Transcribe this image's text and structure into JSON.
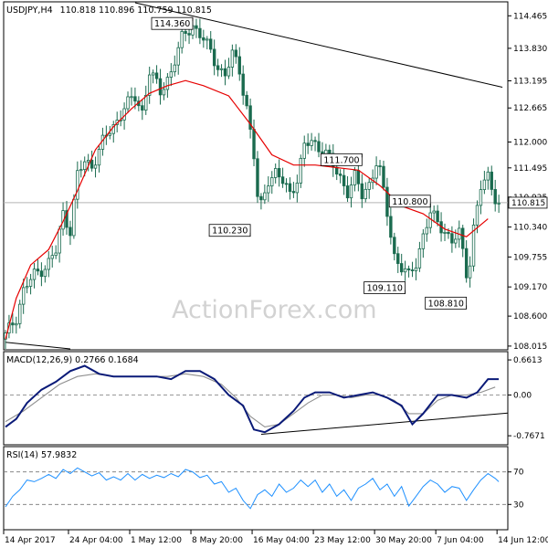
{
  "chart_data": {
    "type": "candlestick",
    "header": {
      "symbol": "USDJPY,H4",
      "ohlc": "110.818 110.896 110.759 110.815"
    },
    "watermark": "ActionForex.com",
    "price_panel": {
      "y_range": [
        107.96,
        114.72
      ],
      "y_ticks": [
        "114.465",
        "113.830",
        "113.195",
        "112.665",
        "112.000",
        "111.495",
        "110.925",
        "110.340",
        "109.755",
        "109.170",
        "108.600",
        "108.015"
      ],
      "y_tick_values": [
        114.465,
        113.83,
        113.195,
        112.665,
        112.0,
        111.495,
        110.925,
        110.34,
        109.755,
        109.17,
        108.6,
        108.015
      ],
      "last_price_label": "110.815",
      "last_price": 110.815,
      "annotations": [
        {
          "label": "114.360",
          "x": 52,
          "price": 114.36
        },
        {
          "label": "110.230",
          "x": 68,
          "price": 110.23
        },
        {
          "label": "111.700",
          "x": 99,
          "price": 111.7
        },
        {
          "label": "110.800",
          "x": 118,
          "price": 110.8
        },
        {
          "label": "109.110",
          "x": 111,
          "price": 109.11
        },
        {
          "label": "108.810",
          "x": 128,
          "price": 108.81
        }
      ],
      "trendlines": [
        {
          "x1": 36,
          "y1": 114.72,
          "x2": 138,
          "y2": 113.07
        },
        {
          "x1": 0,
          "y1": 108.09,
          "x2": 18,
          "y2": 107.96
        }
      ],
      "ma_color": "#e60000",
      "candle_color": "#1a6b4f",
      "ma_points": [
        [
          0,
          108.15
        ],
        [
          3,
          108.95
        ],
        [
          7,
          109.6
        ],
        [
          12,
          109.9
        ],
        [
          16,
          110.45
        ],
        [
          20,
          111.05
        ],
        [
          25,
          111.85
        ],
        [
          30,
          112.3
        ],
        [
          35,
          112.65
        ],
        [
          40,
          112.95
        ],
        [
          45,
          113.1
        ],
        [
          50,
          113.2
        ],
        [
          55,
          113.1
        ],
        [
          62,
          112.9
        ],
        [
          68,
          112.35
        ],
        [
          74,
          111.75
        ],
        [
          80,
          111.55
        ],
        [
          86,
          111.55
        ],
        [
          92,
          111.5
        ],
        [
          98,
          111.45
        ],
        [
          104,
          111.15
        ],
        [
          110,
          110.75
        ],
        [
          116,
          110.6
        ],
        [
          122,
          110.3
        ],
        [
          128,
          110.15
        ],
        [
          134,
          110.5
        ]
      ]
    },
    "macd_panel": {
      "title": "MACD(12,26,9) 0.2766 0.1684",
      "params": [
        12,
        26,
        9
      ],
      "macd_value": 0.2766,
      "signal_value": 0.1684,
      "y_range": [
        -0.92,
        0.8
      ],
      "y_ticks": [
        "0.6613",
        "0.00",
        "-0.7671"
      ],
      "y_tick_values": [
        0.6613,
        0.0,
        -0.7671
      ],
      "macd_color": "#0a1a78",
      "signal_color": "#909090",
      "trendline": {
        "x1": 71,
        "y1": -0.74,
        "x2": 138,
        "y2": -0.34
      },
      "macd_points": [
        [
          0,
          -0.6
        ],
        [
          3,
          -0.45
        ],
        [
          6,
          -0.15
        ],
        [
          10,
          0.1
        ],
        [
          14,
          0.25
        ],
        [
          18,
          0.45
        ],
        [
          22,
          0.55
        ],
        [
          26,
          0.4
        ],
        [
          30,
          0.35
        ],
        [
          34,
          0.35
        ],
        [
          38,
          0.35
        ],
        [
          42,
          0.35
        ],
        [
          46,
          0.3
        ],
        [
          50,
          0.45
        ],
        [
          54,
          0.45
        ],
        [
          58,
          0.3
        ],
        [
          62,
          0.0
        ],
        [
          66,
          -0.2
        ],
        [
          69,
          -0.65
        ],
        [
          72,
          -0.7
        ],
        [
          76,
          -0.55
        ],
        [
          80,
          -0.3
        ],
        [
          83,
          -0.05
        ],
        [
          86,
          0.05
        ],
        [
          90,
          0.05
        ],
        [
          94,
          -0.05
        ],
        [
          98,
          0.0
        ],
        [
          102,
          0.05
        ],
        [
          106,
          -0.05
        ],
        [
          110,
          -0.2
        ],
        [
          113,
          -0.55
        ],
        [
          116,
          -0.35
        ],
        [
          120,
          0.0
        ],
        [
          124,
          0.0
        ],
        [
          128,
          -0.05
        ],
        [
          131,
          0.05
        ],
        [
          134,
          0.3
        ],
        [
          137,
          0.3
        ]
      ],
      "signal_points": [
        [
          0,
          -0.5
        ],
        [
          5,
          -0.3
        ],
        [
          10,
          -0.05
        ],
        [
          15,
          0.2
        ],
        [
          20,
          0.35
        ],
        [
          25,
          0.4
        ],
        [
          30,
          0.35
        ],
        [
          35,
          0.35
        ],
        [
          40,
          0.35
        ],
        [
          45,
          0.35
        ],
        [
          50,
          0.4
        ],
        [
          55,
          0.35
        ],
        [
          60,
          0.2
        ],
        [
          64,
          -0.05
        ],
        [
          68,
          -0.4
        ],
        [
          72,
          -0.6
        ],
        [
          76,
          -0.55
        ],
        [
          80,
          -0.35
        ],
        [
          84,
          -0.15
        ],
        [
          88,
          0.0
        ],
        [
          92,
          0.0
        ],
        [
          96,
          -0.05
        ],
        [
          100,
          0.0
        ],
        [
          104,
          0.0
        ],
        [
          108,
          -0.1
        ],
        [
          112,
          -0.35
        ],
        [
          116,
          -0.35
        ],
        [
          120,
          -0.1
        ],
        [
          124,
          0.0
        ],
        [
          128,
          0.0
        ],
        [
          132,
          0.05
        ],
        [
          136,
          0.15
        ]
      ]
    },
    "rsi_panel": {
      "title": "RSI(14) 57.9832",
      "period": 14,
      "value": 57.9832,
      "y_range": [
        0,
        100
      ],
      "y_ticks": [
        "70",
        "30"
      ],
      "y_tick_values": [
        70,
        30
      ],
      "line_color": "#1e90ff",
      "points": [
        [
          0,
          27
        ],
        [
          2,
          40
        ],
        [
          4,
          48
        ],
        [
          6,
          60
        ],
        [
          8,
          58
        ],
        [
          10,
          62
        ],
        [
          12,
          67
        ],
        [
          14,
          62
        ],
        [
          16,
          73
        ],
        [
          18,
          68
        ],
        [
          20,
          75
        ],
        [
          22,
          70
        ],
        [
          24,
          65
        ],
        [
          26,
          69
        ],
        [
          28,
          60
        ],
        [
          30,
          64
        ],
        [
          32,
          60
        ],
        [
          34,
          68
        ],
        [
          36,
          60
        ],
        [
          38,
          67
        ],
        [
          40,
          62
        ],
        [
          42,
          66
        ],
        [
          44,
          63
        ],
        [
          46,
          68
        ],
        [
          48,
          64
        ],
        [
          50,
          73
        ],
        [
          52,
          70
        ],
        [
          54,
          63
        ],
        [
          56,
          66
        ],
        [
          58,
          55
        ],
        [
          60,
          58
        ],
        [
          62,
          45
        ],
        [
          64,
          50
        ],
        [
          66,
          35
        ],
        [
          68,
          25
        ],
        [
          70,
          42
        ],
        [
          72,
          48
        ],
        [
          74,
          40
        ],
        [
          76,
          55
        ],
        [
          78,
          45
        ],
        [
          80,
          50
        ],
        [
          82,
          60
        ],
        [
          84,
          52
        ],
        [
          86,
          60
        ],
        [
          88,
          45
        ],
        [
          90,
          55
        ],
        [
          92,
          40
        ],
        [
          94,
          48
        ],
        [
          96,
          35
        ],
        [
          98,
          50
        ],
        [
          100,
          55
        ],
        [
          102,
          62
        ],
        [
          104,
          48
        ],
        [
          106,
          55
        ],
        [
          108,
          40
        ],
        [
          110,
          52
        ],
        [
          112,
          28
        ],
        [
          114,
          40
        ],
        [
          116,
          52
        ],
        [
          118,
          60
        ],
        [
          120,
          55
        ],
        [
          122,
          45
        ],
        [
          124,
          52
        ],
        [
          126,
          50
        ],
        [
          128,
          35
        ],
        [
          130,
          48
        ],
        [
          132,
          60
        ],
        [
          134,
          68
        ],
        [
          136,
          62
        ],
        [
          137,
          58
        ]
      ]
    },
    "x_axis": {
      "n_bars": 140,
      "labels": [
        {
          "text": "14 Apr 2017",
          "x": 0
        },
        {
          "text": "24 Apr 04:00",
          "x": 18
        },
        {
          "text": "1 May 12:00",
          "x": 35
        },
        {
          "text": "8 May 20:00",
          "x": 52
        },
        {
          "text": "16 May 04:00",
          "x": 69
        },
        {
          "text": "23 May 12:00",
          "x": 86
        },
        {
          "text": "30 May 20:00",
          "x": 103
        },
        {
          "text": "7 Jun 04:00",
          "x": 120
        },
        {
          "text": "14 Jun 12:00",
          "x": 137
        }
      ]
    },
    "series": [
      {
        "name": "USDJPY,H4",
        "close_anchor_points": [
          [
            0,
            108.2
          ],
          [
            3,
            108.6
          ],
          [
            5,
            109.1
          ],
          [
            8,
            109.4
          ],
          [
            12,
            109.65
          ],
          [
            14,
            109.85
          ],
          [
            16,
            110.6
          ],
          [
            18,
            110.3
          ],
          [
            20,
            111.35
          ],
          [
            22,
            111.6
          ],
          [
            24,
            111.55
          ],
          [
            27,
            112.0
          ],
          [
            30,
            112.3
          ],
          [
            33,
            112.7
          ],
          [
            36,
            112.85
          ],
          [
            38,
            112.6
          ],
          [
            40,
            113.4
          ],
          [
            43,
            112.95
          ],
          [
            46,
            113.4
          ],
          [
            49,
            114.0
          ],
          [
            52,
            114.3
          ],
          [
            55,
            114.0
          ],
          [
            58,
            113.6
          ],
          [
            61,
            113.3
          ],
          [
            63,
            113.7
          ],
          [
            65,
            113.4
          ],
          [
            67,
            112.7
          ],
          [
            69,
            111.7
          ],
          [
            70,
            110.9
          ],
          [
            71,
            110.75
          ],
          [
            73,
            111.3
          ],
          [
            75,
            111.4
          ],
          [
            77,
            111.2
          ],
          [
            79,
            111.0
          ],
          [
            81,
            111.3
          ],
          [
            83,
            111.9
          ],
          [
            85,
            112.0
          ],
          [
            87,
            111.9
          ],
          [
            89,
            111.8
          ],
          [
            91,
            111.5
          ],
          [
            93,
            111.3
          ],
          [
            95,
            111.05
          ],
          [
            97,
            111.3
          ],
          [
            99,
            110.95
          ],
          [
            101,
            111.2
          ],
          [
            103,
            111.6
          ],
          [
            104,
            111.4
          ],
          [
            106,
            110.6
          ],
          [
            108,
            109.8
          ],
          [
            110,
            109.55
          ],
          [
            112,
            109.35
          ],
          [
            114,
            109.65
          ],
          [
            116,
            110.2
          ],
          [
            118,
            110.6
          ],
          [
            120,
            110.4
          ],
          [
            122,
            110.3
          ],
          [
            124,
            110.05
          ],
          [
            126,
            110.2
          ],
          [
            128,
            109.45
          ],
          [
            129,
            109.7
          ],
          [
            130,
            110.35
          ],
          [
            132,
            111.1
          ],
          [
            134,
            111.3
          ],
          [
            136,
            110.95
          ],
          [
            137,
            110.82
          ]
        ]
      }
    ]
  }
}
